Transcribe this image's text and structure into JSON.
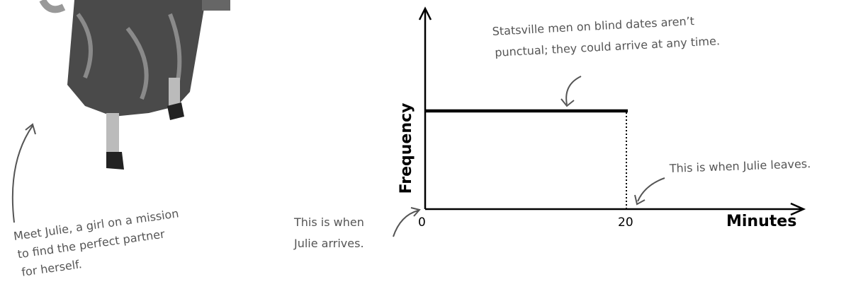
{
  "graph": {
    "x_axis_label": "Minutes",
    "y_axis_label": "Frequency",
    "x_ticks": [
      "0",
      "20"
    ]
  },
  "annotations": {
    "men": [
      "Statsville men on blind dates aren’t",
      "punctual; they could arrive at any time."
    ],
    "leaves": [
      "This is when Julie leaves."
    ],
    "arrives": [
      "This is when",
      "Julie arrives."
    ],
    "julie": [
      "Meet Julie, a girl on a mission",
      "to find the perfect partner",
      "for herself."
    ]
  }
}
